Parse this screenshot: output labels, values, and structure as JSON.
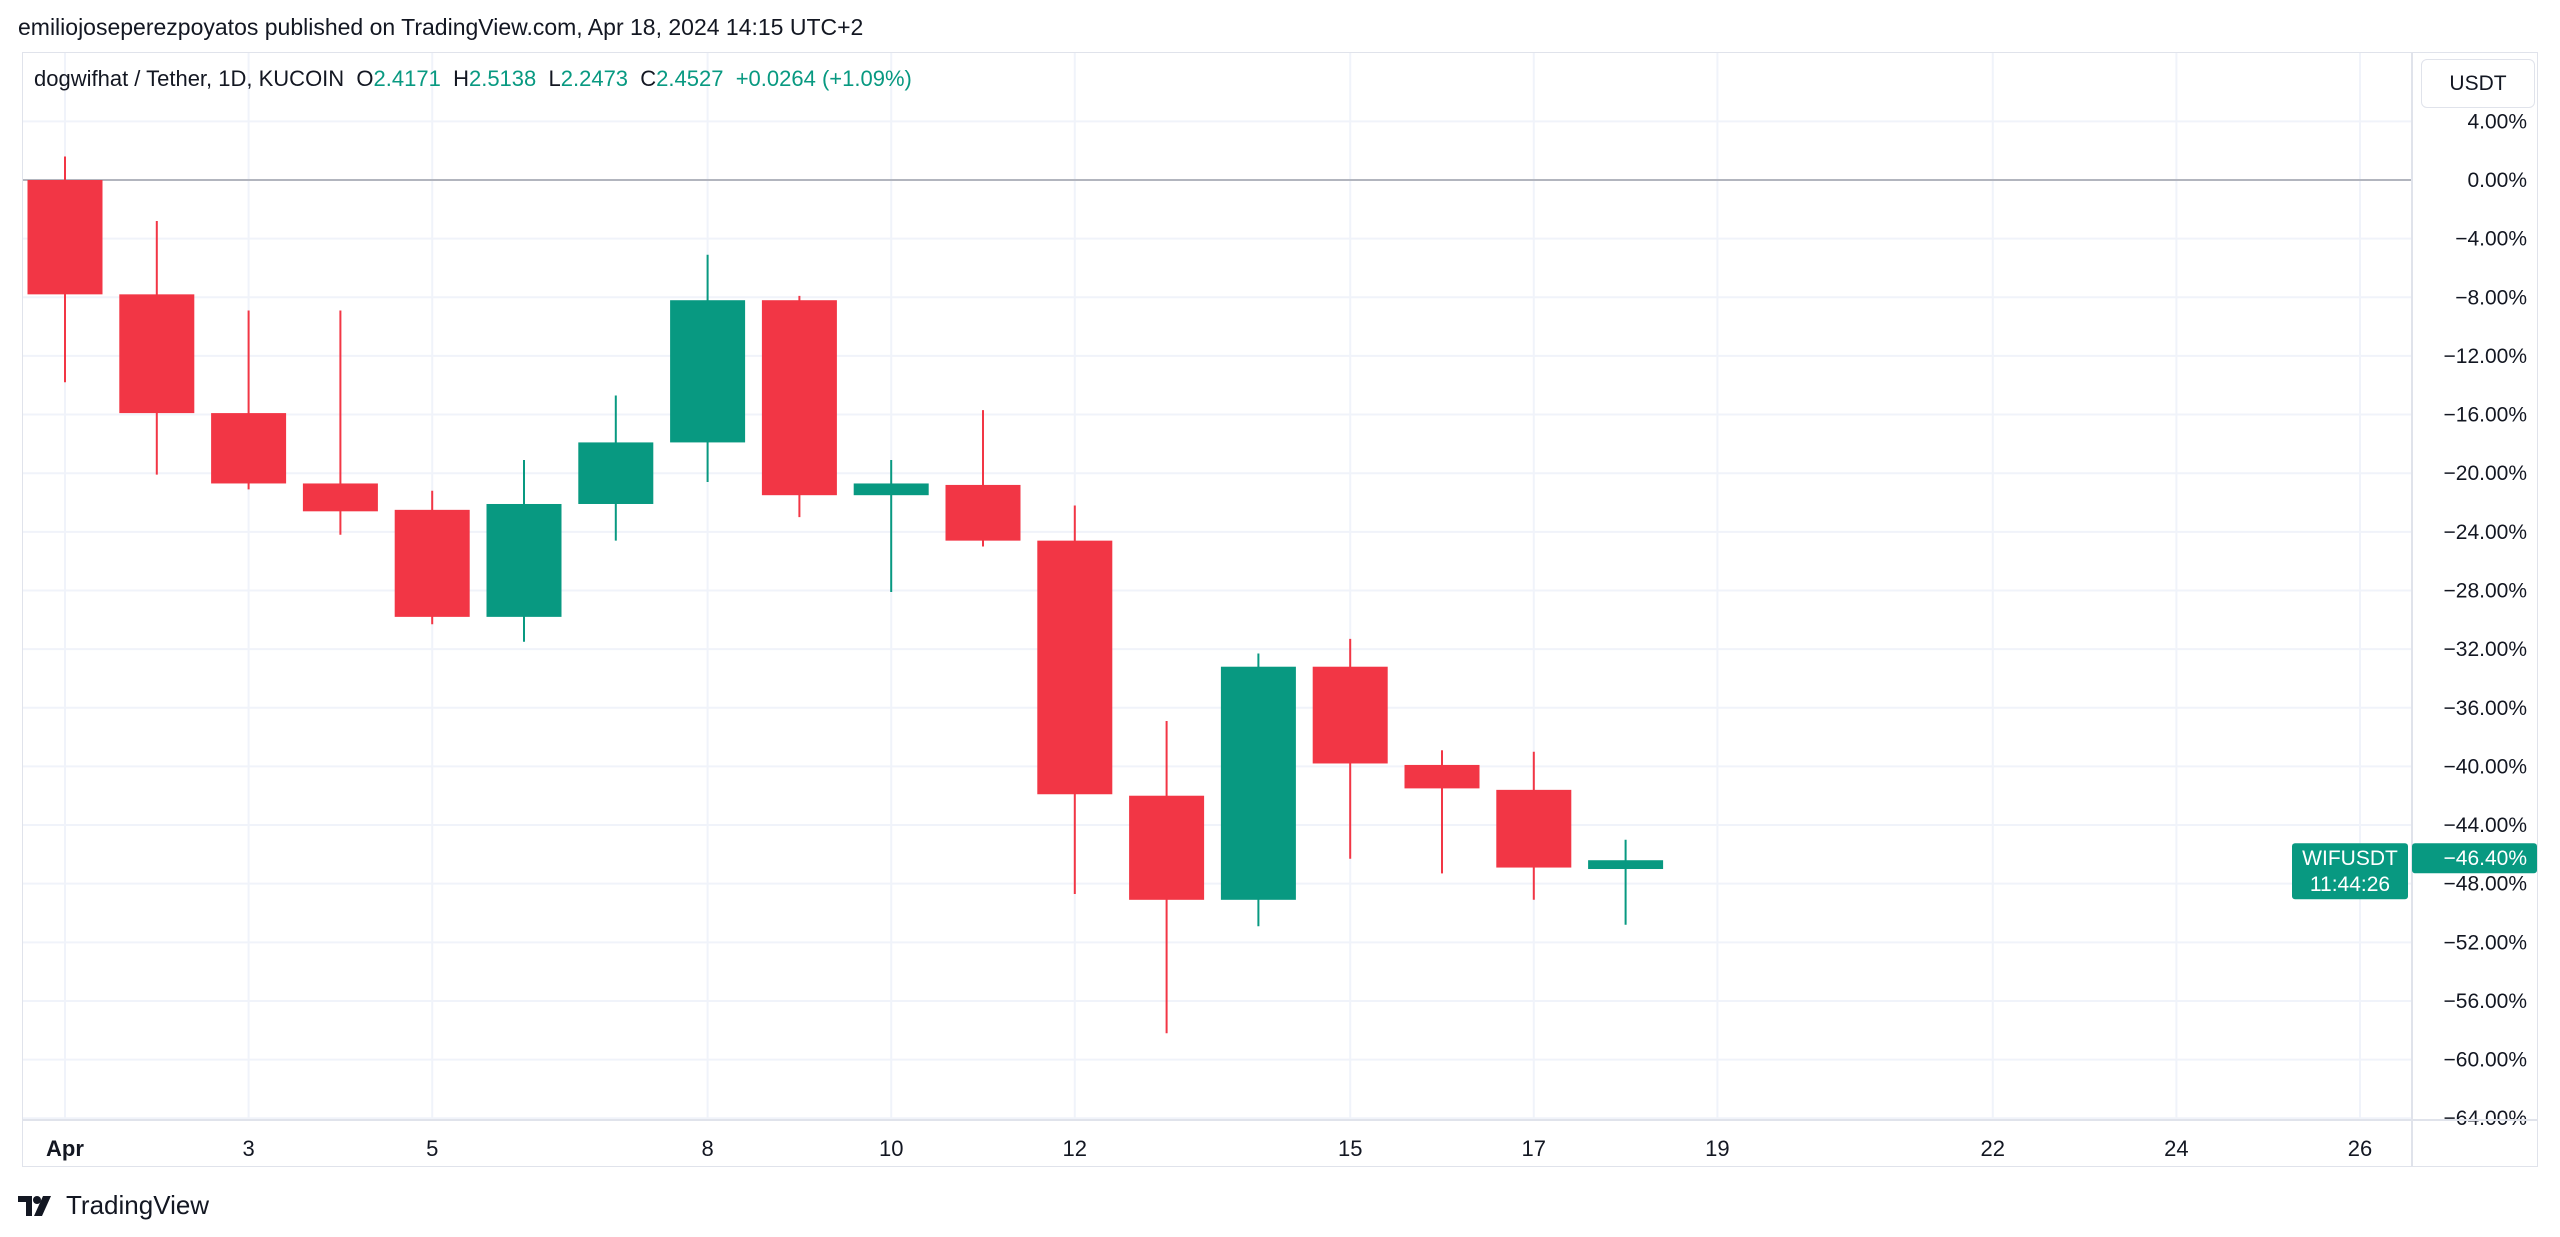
{
  "published": "emiliojoseperezpoyatos published on TradingView.com, Apr 18, 2024 14:15 UTC+2",
  "legend": {
    "symbol": "dogwifhat / Tether, 1D, KUCOIN",
    "o_label": "O",
    "o": "2.4171",
    "h_label": "H",
    "h": "2.5138",
    "l_label": "L",
    "l": "2.2473",
    "c_label": "C",
    "c": "2.4527",
    "change": "+0.0264 (+1.09%)"
  },
  "currency_button": "USDT",
  "price_tag": {
    "symbol": "WIFUSDT",
    "value": "−46.40%",
    "countdown": "11:44:26"
  },
  "footer_brand": "TradingView",
  "colors": {
    "up": "#089981",
    "down": "#F23645",
    "grid": "#f0f3fa",
    "zero_line": "#b2b5be"
  },
  "chart_data": {
    "type": "candlestick",
    "ylabel": "",
    "ylim": [
      -64,
      4
    ],
    "yticks": [
      4,
      0,
      -4,
      -8,
      -12,
      -16,
      -20,
      -24,
      -28,
      -32,
      -36,
      -40,
      -44,
      -48,
      -52,
      -56,
      -60,
      -64
    ],
    "ytick_labels": [
      "4.00%",
      "0.00%",
      "−4.00%",
      "−8.00%",
      "−12.00%",
      "−16.00%",
      "−20.00%",
      "−24.00%",
      "−28.00%",
      "−32.00%",
      "−36.00%",
      "−40.00%",
      "−44.00%",
      "−48.00%",
      "−52.00%",
      "−56.00%",
      "−60.00%",
      "−64.00%"
    ],
    "xticks": [
      1,
      3,
      5,
      8,
      10,
      12,
      15,
      17,
      19,
      22,
      24,
      26
    ],
    "xtick_labels": [
      "Apr",
      "3",
      "5",
      "8",
      "10",
      "12",
      "15",
      "17",
      "19",
      "22",
      "24",
      "26"
    ],
    "xlim": [
      1,
      27
    ],
    "grid": true,
    "unit": "percent change",
    "candles": [
      {
        "day": 1,
        "o": 0,
        "h": 1.6,
        "l": -13.8,
        "c": -7.8
      },
      {
        "day": 2,
        "o": -7.8,
        "h": -2.8,
        "l": -20.1,
        "c": -15.9
      },
      {
        "day": 3,
        "o": -15.9,
        "h": -8.9,
        "l": -21.1,
        "c": -20.7
      },
      {
        "day": 4,
        "o": -20.7,
        "h": -8.9,
        "l": -24.2,
        "c": -22.6
      },
      {
        "day": 5,
        "o": -22.5,
        "h": -21.2,
        "l": -30.3,
        "c": -29.8
      },
      {
        "day": 6,
        "o": -29.8,
        "h": -19.1,
        "l": -31.5,
        "c": -22.1
      },
      {
        "day": 7,
        "o": -22.1,
        "h": -14.7,
        "l": -24.6,
        "c": -17.9
      },
      {
        "day": 8,
        "o": -17.9,
        "h": -5.1,
        "l": -20.6,
        "c": -8.2
      },
      {
        "day": 9,
        "o": -8.2,
        "h": -7.9,
        "l": -23.0,
        "c": -21.5
      },
      {
        "day": 10,
        "o": -21.5,
        "h": -19.1,
        "l": -28.1,
        "c": -20.7
      },
      {
        "day": 11,
        "o": -20.8,
        "h": -15.7,
        "l": -25.0,
        "c": -24.6
      },
      {
        "day": 12,
        "o": -24.6,
        "h": -22.2,
        "l": -48.7,
        "c": -41.9
      },
      {
        "day": 13,
        "o": -42.0,
        "h": -36.9,
        "l": -58.2,
        "c": -49.1
      },
      {
        "day": 14,
        "o": -49.1,
        "h": -32.3,
        "l": -50.9,
        "c": -33.2
      },
      {
        "day": 15,
        "o": -33.2,
        "h": -31.3,
        "l": -46.3,
        "c": -39.8
      },
      {
        "day": 16,
        "o": -39.9,
        "h": -38.9,
        "l": -47.3,
        "c": -41.5
      },
      {
        "day": 17,
        "o": -41.6,
        "h": -39.0,
        "l": -49.1,
        "c": -46.9
      },
      {
        "day": 18,
        "o": -47.0,
        "h": -45.0,
        "l": -50.8,
        "c": -46.4
      }
    ],
    "last_value": -46.4
  }
}
